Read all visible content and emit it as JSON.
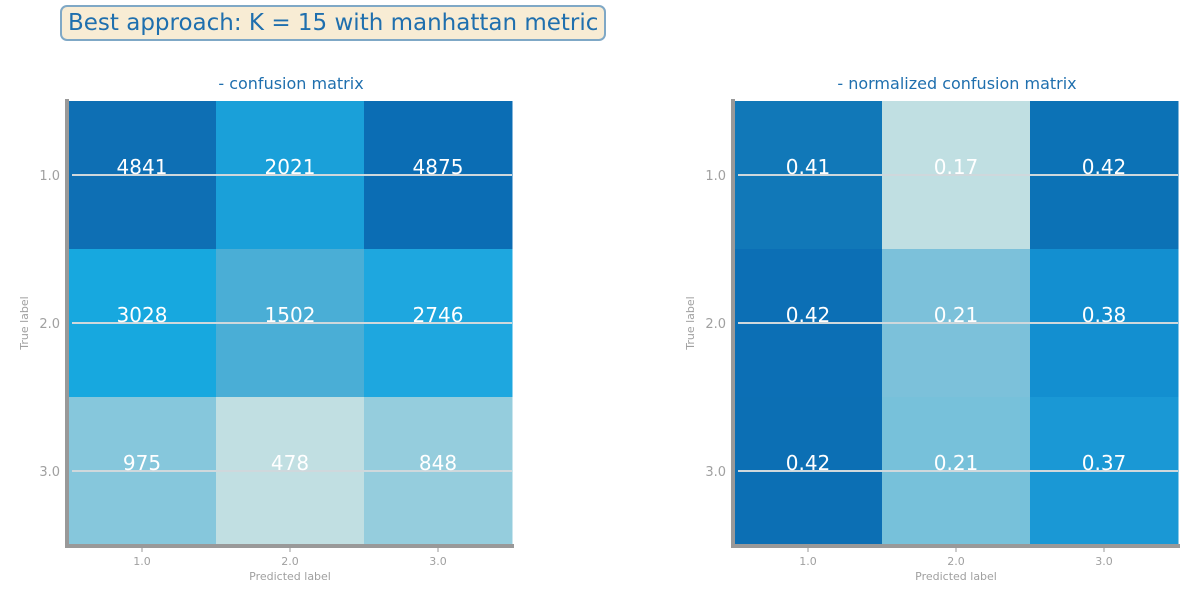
{
  "suptitle": "Best approach: K = 15 with manhattan metric",
  "colors": {
    "title": "#1f6fae",
    "axis": "#999999",
    "tick_text": "#a0a0a0",
    "cell_text": "#ffffff",
    "gridline": "#cfd8dc",
    "suptitle_bg": "#f8ecd4",
    "suptitle_border": "#7fa8c6",
    "colormap": [
      "#c3dfe2",
      "#7cc2db",
      "#1da6de",
      "#0b6eb5"
    ]
  },
  "chart_data": [
    {
      "type": "heatmap",
      "title": "- confusion matrix",
      "xlabel": "Predicted label",
      "ylabel": "True label",
      "x_categories": [
        "1.0",
        "2.0",
        "3.0"
      ],
      "y_categories": [
        "1.0",
        "2.0",
        "3.0"
      ],
      "values": [
        [
          4841,
          2021,
          4875
        ],
        [
          3028,
          1502,
          2746
        ],
        [
          975,
          478,
          848
        ]
      ],
      "value_labels": [
        [
          "4841",
          "2021",
          "4875"
        ],
        [
          "3028",
          "1502",
          "2746"
        ],
        [
          "975",
          "478",
          "848"
        ]
      ],
      "cell_colors": [
        [
          "#0e6fb4",
          "#1aa0d9",
          "#0b6db4"
        ],
        [
          "#17a8df",
          "#4aaed6",
          "#1ea7df"
        ],
        [
          "#86c7dc",
          "#c1dfe2",
          "#95cddd"
        ]
      ],
      "grid": true
    },
    {
      "type": "heatmap",
      "title": "- normalized confusion matrix",
      "xlabel": "Predicted label",
      "ylabel": "True label",
      "x_categories": [
        "1.0",
        "2.0",
        "3.0"
      ],
      "y_categories": [
        "1.0",
        "2.0",
        "3.0"
      ],
      "values": [
        [
          0.41,
          0.17,
          0.42
        ],
        [
          0.42,
          0.21,
          0.38
        ],
        [
          0.42,
          0.21,
          0.37
        ]
      ],
      "value_labels": [
        [
          "0.41",
          "0.17",
          "0.42"
        ],
        [
          "0.42",
          "0.21",
          "0.38"
        ],
        [
          "0.42",
          "0.21",
          "0.37"
        ]
      ],
      "cell_colors": [
        [
          "#1178b8",
          "#c0dfe2",
          "#0c72b6"
        ],
        [
          "#0c6fb5",
          "#7cc1da",
          "#138fd0"
        ],
        [
          "#0c6fb4",
          "#77c1da",
          "#1a98d5"
        ]
      ],
      "grid": true
    }
  ]
}
